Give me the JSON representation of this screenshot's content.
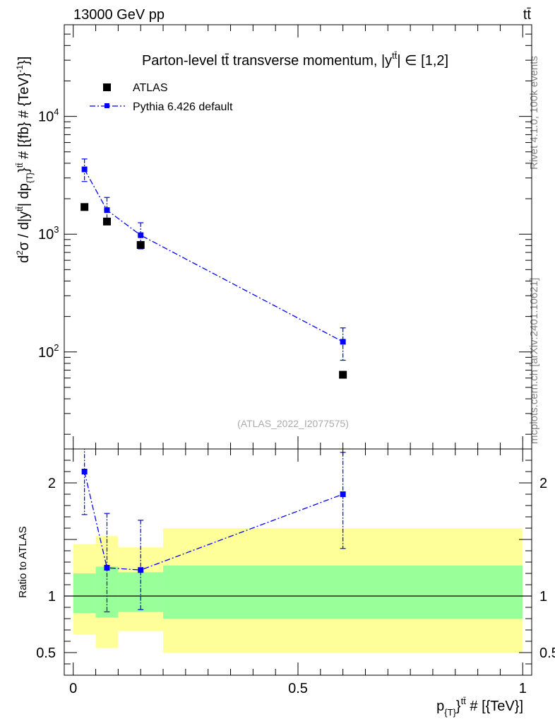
{
  "header": {
    "left": "13000 GeV pp",
    "right": "tt̄"
  },
  "side_labels": {
    "rivet": "Rivet 4.1.0,  100k events",
    "mcplots": "mcplots.cern.ch [arXiv:2401.10621]"
  },
  "chart_data": {
    "type": "scatter",
    "title": "Parton-level tt̄ transverse momentum, |y^{tt̄}| ∈ [1,2]",
    "analysis_label": "(ATLAS_2022_I2077575)",
    "xlabel": "p_{T}^{tt̄} # [{TeV}]",
    "ylabel": "d²σ / d|y^{tt̄}| dp_{T}^{tt̄} # [{fb} # {TeV}^{-1}]",
    "ratio_ylabel": "Ratio to ATLAS",
    "xlim": [
      -0.02,
      1.02
    ],
    "ylim_log": [
      15,
      60000
    ],
    "ratio_ylim": [
      0.3,
      2.3
    ],
    "x_ticks": [
      0,
      0.5,
      1
    ],
    "x_tick_labels": [
      "0",
      "0.5",
      "1"
    ],
    "y_tick_labels": [
      {
        "base": "10",
        "exp": "2",
        "value": 100
      },
      {
        "base": "10",
        "exp": "3",
        "value": 1000
      },
      {
        "base": "10",
        "exp": "4",
        "value": 10000
      }
    ],
    "ratio_ticks": [
      0.5,
      1,
      2
    ],
    "ratio_tick_labels": [
      "0.5",
      "1",
      "2"
    ],
    "bins": [
      [
        0,
        0.05
      ],
      [
        0.05,
        0.1
      ],
      [
        0.1,
        0.2
      ],
      [
        0.2,
        1.0
      ]
    ],
    "series": [
      {
        "name": "ATLAS",
        "color": "#000000",
        "style": "square-marker",
        "x": [
          0.025,
          0.075,
          0.15,
          0.6
        ],
        "y": [
          1700,
          1280,
          810,
          64
        ]
      },
      {
        "name": "Pythia 6.426 default",
        "color": "#0000ff",
        "style": "dash-dot-line-square-marker",
        "x": [
          0.025,
          0.075,
          0.15,
          0.6
        ],
        "y": [
          3550,
          1600,
          980,
          122
        ],
        "y_err_low": [
          2800,
          1250,
          750,
          85
        ],
        "y_err_high": [
          4350,
          2050,
          1250,
          160
        ]
      }
    ],
    "ratio": {
      "reference_line": 1.0,
      "mc": {
        "x": [
          0.025,
          0.075,
          0.15,
          0.6
        ],
        "y": [
          2.1,
          1.25,
          1.23,
          1.9
        ],
        "y_err_low": [
          1.72,
          0.86,
          0.88,
          1.42
        ],
        "y_err_high": [
          2.33,
          1.73,
          1.67,
          2.27
        ]
      },
      "band_total": [
        {
          "x0": 0.0,
          "x1": 0.05,
          "lo": 0.66,
          "hi": 1.46
        },
        {
          "x0": 0.05,
          "x1": 0.1,
          "lo": 0.54,
          "hi": 1.53
        },
        {
          "x0": 0.1,
          "x1": 0.2,
          "lo": 0.69,
          "hi": 1.43
        },
        {
          "x0": 0.2,
          "x1": 1.0,
          "lo": 0.5,
          "hi": 1.6
        }
      ],
      "band_stat": [
        {
          "x0": 0.0,
          "x1": 0.05,
          "lo": 0.85,
          "hi": 1.2
        },
        {
          "x0": 0.05,
          "x1": 0.1,
          "lo": 0.81,
          "hi": 1.26
        },
        {
          "x0": 0.1,
          "x1": 0.2,
          "lo": 0.86,
          "hi": 1.21
        },
        {
          "x0": 0.2,
          "x1": 1.0,
          "lo": 0.8,
          "hi": 1.27
        }
      ],
      "band_colors": {
        "total": "#ffff99",
        "stat": "#99ff99"
      }
    }
  }
}
